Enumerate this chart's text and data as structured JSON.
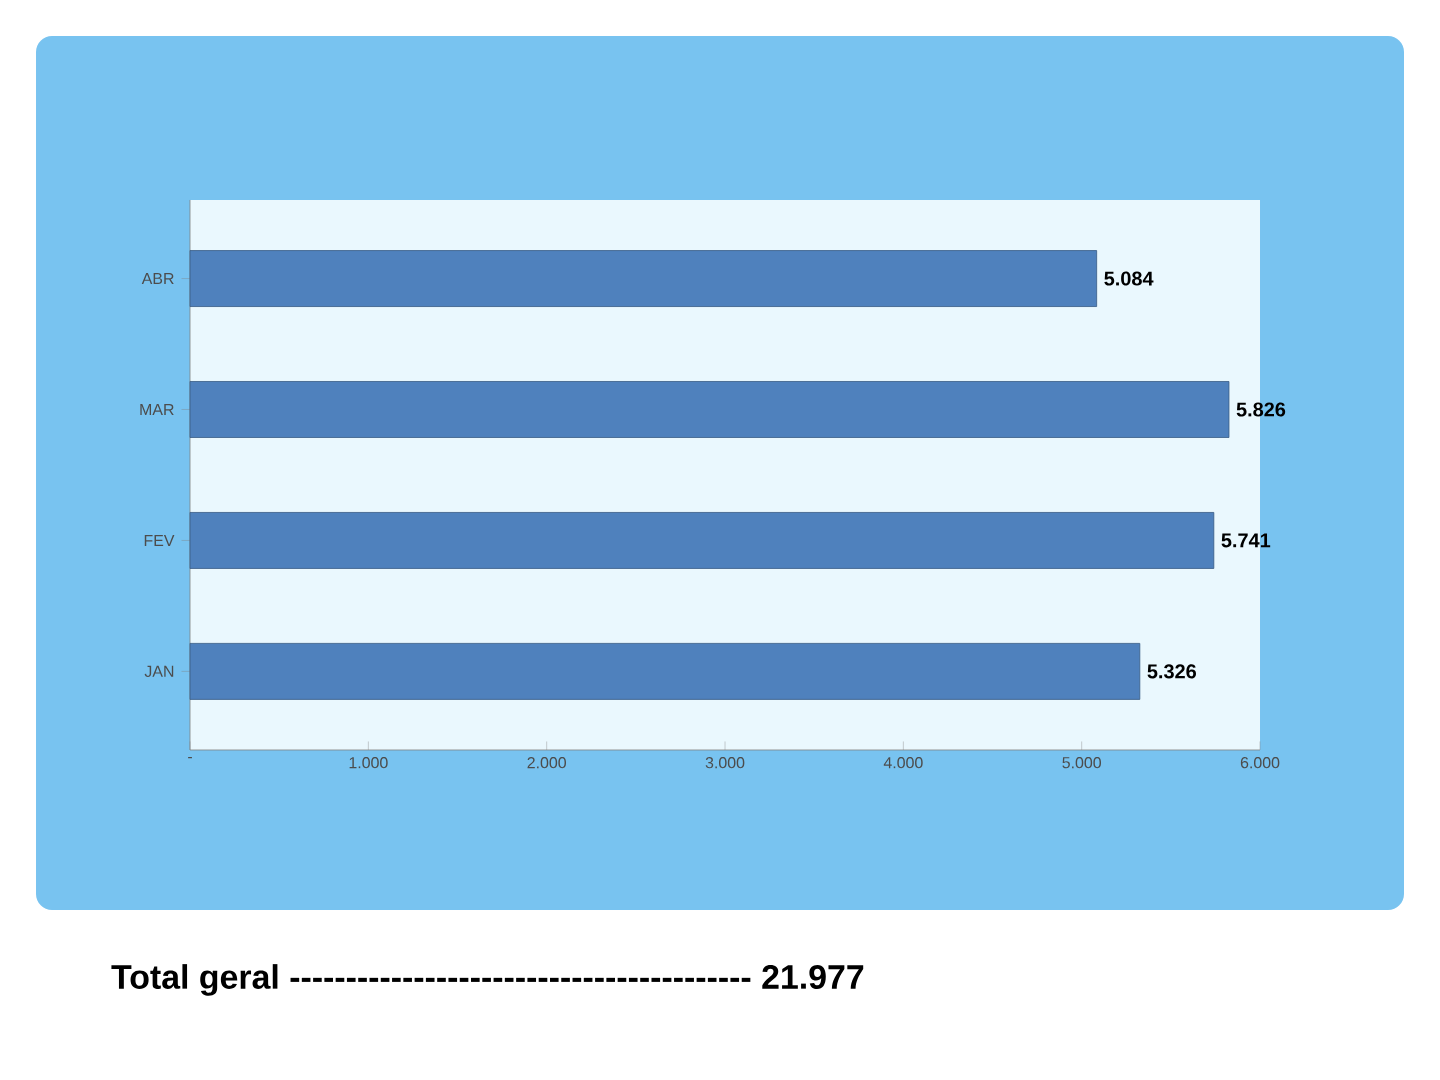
{
  "chart_data": {
    "type": "bar",
    "orientation": "horizontal",
    "categories": [
      "ABR",
      "MAR",
      "FEV",
      "JAN"
    ],
    "values": [
      5084,
      5826,
      5741,
      5326
    ],
    "value_labels": [
      "5.084",
      "5.826",
      "5.741",
      "5.326"
    ],
    "color": "#4f81bd",
    "xlim": [
      0,
      6000
    ],
    "xticks": [
      {
        "value": 0,
        "label": "-"
      },
      {
        "value": 1000,
        "label": "1.000"
      },
      {
        "value": 2000,
        "label": "2.000"
      },
      {
        "value": 3000,
        "label": "3.000"
      },
      {
        "value": 4000,
        "label": "4.000"
      },
      {
        "value": 5000,
        "label": "5.000"
      },
      {
        "value": 6000,
        "label": "6.000"
      }
    ],
    "annotations": [
      "Total geral -----------------------------------------  21.977"
    ]
  }
}
